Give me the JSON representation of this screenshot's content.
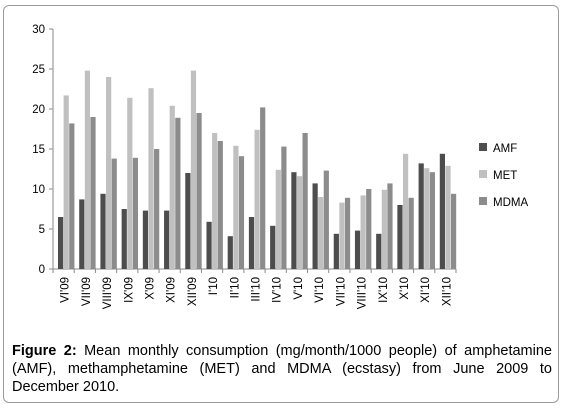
{
  "chart_data": {
    "type": "bar",
    "categories": [
      "VI'09",
      "VII'09",
      "VIII'09",
      "IX'09",
      "X'09",
      "XI'09",
      "XII'09",
      "I'10",
      "II'10",
      "III'10",
      "IV'10",
      "V'10",
      "VI'10",
      "VII'10",
      "VIII'10",
      "IX'10",
      "X'10",
      "XI'10",
      "XII'10"
    ],
    "series": [
      {
        "name": "AMF",
        "color": "#4d4d4d",
        "values": [
          6.5,
          8.7,
          9.4,
          7.5,
          7.3,
          7.3,
          12.0,
          5.9,
          4.1,
          6.5,
          5.4,
          12.1,
          10.7,
          4.4,
          4.8,
          4.4,
          8.0,
          13.2,
          14.4
        ]
      },
      {
        "name": "MET",
        "color": "#c0c0c0",
        "values": [
          21.7,
          24.8,
          24.0,
          21.4,
          22.6,
          20.4,
          24.8,
          17.0,
          15.4,
          17.4,
          12.4,
          11.6,
          9.0,
          8.3,
          9.2,
          9.9,
          14.4,
          12.6,
          12.9
        ]
      },
      {
        "name": "MDMA",
        "color": "#8c8c8c",
        "values": [
          18.2,
          19.0,
          13.8,
          13.9,
          15.0,
          18.9,
          19.5,
          16.0,
          14.1,
          20.2,
          15.3,
          17.0,
          12.3,
          8.9,
          10.0,
          10.7,
          8.9,
          12.1,
          9.4
        ]
      }
    ],
    "ylim": [
      0,
      30
    ],
    "yticks": [
      0,
      5,
      10,
      15,
      20,
      25,
      30
    ],
    "grid": false,
    "legend_position": "right"
  },
  "caption": {
    "label": "Figure 2:",
    "text": " Mean monthly consumption (mg/month/1000 people) of amphetamine (AMF), methamphetamine (MET) and MDMA (ecstasy) from June 2009 to December 2010."
  }
}
